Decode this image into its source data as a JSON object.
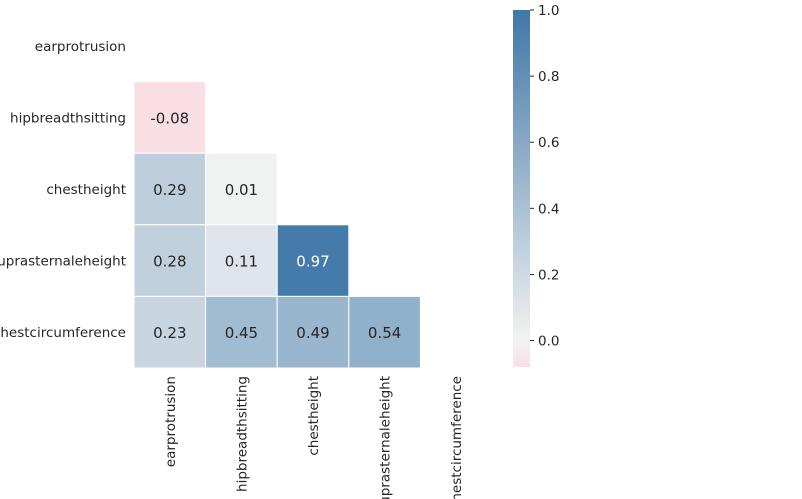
{
  "chart_data": {
    "type": "heatmap",
    "title": "",
    "variables": [
      "earprotrusion",
      "hipbreadthsitting",
      "chestheight",
      "suprasternaleheight",
      "chestcircumference"
    ],
    "cells": [
      {
        "row": 1,
        "col": 0,
        "value": -0.08,
        "label": "-0.08"
      },
      {
        "row": 2,
        "col": 0,
        "value": 0.29,
        "label": "0.29"
      },
      {
        "row": 2,
        "col": 1,
        "value": 0.01,
        "label": "0.01"
      },
      {
        "row": 3,
        "col": 0,
        "value": 0.28,
        "label": "0.28"
      },
      {
        "row": 3,
        "col": 1,
        "value": 0.11,
        "label": "0.11"
      },
      {
        "row": 3,
        "col": 2,
        "value": 0.97,
        "label": "0.97"
      },
      {
        "row": 4,
        "col": 0,
        "value": 0.23,
        "label": "0.23"
      },
      {
        "row": 4,
        "col": 1,
        "value": 0.45,
        "label": "0.45"
      },
      {
        "row": 4,
        "col": 2,
        "value": 0.49,
        "label": "0.49"
      },
      {
        "row": 4,
        "col": 3,
        "value": 0.54,
        "label": "0.54"
      }
    ],
    "mask": "upper-triangle-and-diagonal",
    "colorbar": {
      "range": [
        -0.08,
        1.0
      ],
      "ticks": [
        1.0,
        0.8,
        0.6,
        0.4,
        0.2,
        0.0
      ],
      "tick_labels": [
        "1.0",
        "0.8",
        "0.6",
        "0.4",
        "0.2",
        "0.0"
      ],
      "colors": {
        "low": "#f9dfe3",
        "mid": "#f2f2f2",
        "high": "#3f77a8"
      }
    }
  }
}
